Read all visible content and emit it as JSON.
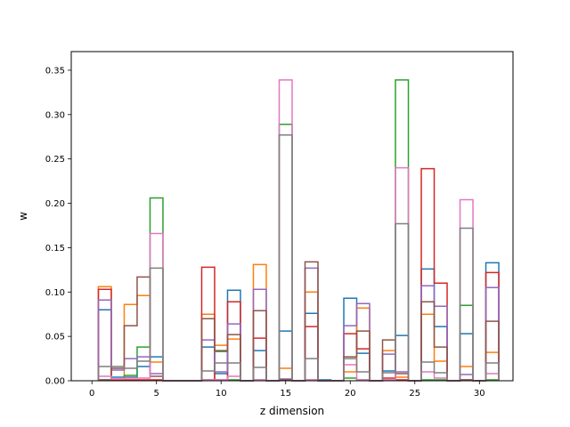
{
  "chart_data": {
    "type": "histogram-step",
    "title": "",
    "xlabel": "z dimension",
    "ylabel": "w",
    "xlim": [
      -1.6,
      32.6
    ],
    "ylim": [
      0,
      0.371
    ],
    "x_ticks": [
      0,
      5,
      10,
      15,
      20,
      25,
      30
    ],
    "x_tick_labels": [
      "0",
      "5",
      "10",
      "15",
      "20",
      "25",
      "30"
    ],
    "y_ticks": [
      0.0,
      0.05,
      0.1,
      0.15,
      0.2,
      0.25,
      0.3,
      0.35
    ],
    "y_tick_labels": [
      "0.00",
      "0.05",
      "0.10",
      "0.15",
      "0.20",
      "0.25",
      "0.30",
      "0.35"
    ],
    "grid": false,
    "legend": "none",
    "bin_edges": [
      0.5,
      1.5,
      2.5,
      3.5,
      4.5,
      5.5,
      6.5,
      7.5,
      8.5,
      9.5,
      10.5,
      11.5,
      12.5,
      13.5,
      14.5,
      15.5,
      16.5,
      17.5,
      18.5,
      19.5,
      20.5,
      21.5,
      22.5,
      23.5,
      24.5,
      25.5,
      26.5,
      27.5,
      28.5,
      29.5,
      30.5,
      31.5
    ],
    "series": [
      {
        "color": "#1f77b4",
        "values": [
          0.08,
          0.004,
          0.004,
          0.016,
          0.027,
          0,
          0,
          0,
          0.038,
          0.008,
          0.102,
          0,
          0.034,
          0,
          0.056,
          0,
          0.076,
          0.001,
          0,
          0.093,
          0.031,
          0,
          0.011,
          0.051,
          0,
          0.126,
          0.061,
          0,
          0.053,
          0,
          0.133
        ]
      },
      {
        "color": "#ff7f0e",
        "values": [
          0.106,
          0.002,
          0.086,
          0.096,
          0.021,
          0,
          0,
          0,
          0.075,
          0.04,
          0.047,
          0,
          0.131,
          0,
          0.014,
          0,
          0.1,
          0,
          0,
          0.01,
          0.082,
          0,
          0.034,
          0.004,
          0,
          0.075,
          0.022,
          0,
          0.016,
          0,
          0.032
        ]
      },
      {
        "color": "#2ca02c",
        "values": [
          0.001,
          0.001,
          0.006,
          0.038,
          0.206,
          0,
          0,
          0,
          0.001,
          0.033,
          0.001,
          0,
          0.001,
          0,
          0.289,
          0,
          0.001,
          0,
          0,
          0.003,
          0.001,
          0,
          0.001,
          0.339,
          0,
          0.001,
          0.001,
          0,
          0.085,
          0,
          0.001
        ]
      },
      {
        "color": "#d62728",
        "values": [
          0.103,
          0.001,
          0.001,
          0.001,
          0.001,
          0,
          0,
          0,
          0.128,
          0.001,
          0.089,
          0,
          0.048,
          0,
          0.001,
          0,
          0.061,
          0,
          0,
          0.053,
          0.036,
          0,
          0.003,
          0.001,
          0,
          0.239,
          0.11,
          0,
          0.001,
          0,
          0.122
        ]
      },
      {
        "color": "#9467bd",
        "values": [
          0.091,
          0.012,
          0.025,
          0.027,
          0.008,
          0,
          0,
          0,
          0.046,
          0.01,
          0.064,
          0,
          0.103,
          0,
          0.002,
          0,
          0.127,
          0,
          0,
          0.062,
          0.087,
          0,
          0.03,
          0.01,
          0,
          0.107,
          0.084,
          0,
          0.007,
          0,
          0.105
        ]
      },
      {
        "color": "#8c564b",
        "values": [
          0.001,
          0.014,
          0.062,
          0.117,
          0.005,
          0,
          0,
          0,
          0.07,
          0.034,
          0.052,
          0,
          0.079,
          0,
          0.001,
          0,
          0.134,
          0,
          0,
          0.027,
          0.056,
          0,
          0.046,
          0.008,
          0,
          0.089,
          0.038,
          0,
          0.001,
          0,
          0.067
        ]
      },
      {
        "color": "#e377c2",
        "values": [
          0.005,
          0.002,
          0.003,
          0.003,
          0.166,
          0,
          0,
          0,
          0.001,
          0.001,
          0.005,
          0,
          0.001,
          0,
          0.339,
          0,
          0.001,
          0,
          0,
          0.018,
          0.001,
          0,
          0.001,
          0.24,
          0,
          0.01,
          0.003,
          0,
          0.204,
          0,
          0.008
        ]
      },
      {
        "color": "#7f7f7f",
        "values": [
          0.016,
          0.016,
          0.014,
          0.022,
          0.127,
          0,
          0,
          0,
          0.011,
          0.02,
          0.02,
          0,
          0.015,
          0,
          0.277,
          0,
          0.025,
          0,
          0,
          0.025,
          0.01,
          0,
          0.009,
          0.177,
          0,
          0.021,
          0.009,
          0,
          0.172,
          0,
          0.02
        ]
      }
    ]
  }
}
